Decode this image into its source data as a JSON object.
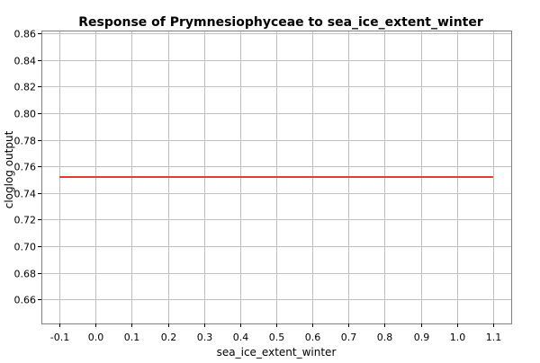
{
  "chart_data": {
    "type": "line",
    "title": "Response of Prymnesiophyceae to sea_ice_extent_winter",
    "xlabel": "sea_ice_extent_winter",
    "ylabel": "cloglog output",
    "xlim": [
      -0.15,
      1.15
    ],
    "ylim": [
      0.642,
      0.862
    ],
    "x_ticks": [
      -0.1,
      0.0,
      0.1,
      0.2,
      0.3,
      0.4,
      0.5,
      0.6,
      0.7,
      0.8,
      0.9,
      1.0,
      1.1
    ],
    "x_tick_labels": [
      "-0.1",
      "0.0",
      "0.1",
      "0.2",
      "0.3",
      "0.4",
      "0.5",
      "0.6",
      "0.7",
      "0.8",
      "0.9",
      "1.0",
      "1.1"
    ],
    "y_ticks": [
      0.66,
      0.68,
      0.7,
      0.72,
      0.74,
      0.76,
      0.78,
      0.8,
      0.82,
      0.84,
      0.86
    ],
    "y_tick_labels": [
      "0.66",
      "0.68",
      "0.70",
      "0.72",
      "0.74",
      "0.76",
      "0.78",
      "0.80",
      "0.82",
      "0.84",
      "0.86"
    ],
    "grid": true,
    "series": [
      {
        "color": "#e8392b",
        "x": [
          -0.1,
          1.1
        ],
        "y": [
          0.752,
          0.752
        ]
      }
    ]
  }
}
